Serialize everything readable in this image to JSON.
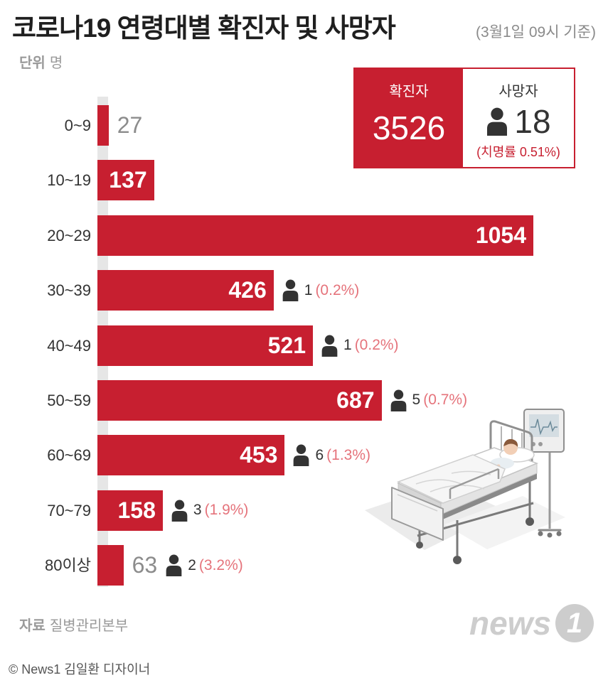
{
  "chart_data": {
    "type": "bar",
    "orientation": "horizontal",
    "title": "코로나19 연령대별 확진자 및 사망자",
    "subtitle": "(3월1일 09시 기준)",
    "unit": {
      "label": "단위",
      "value": "명"
    },
    "categories": [
      "0~9",
      "10~19",
      "20~29",
      "30~39",
      "40~49",
      "50~59",
      "60~69",
      "70~79",
      "80이상"
    ],
    "series": [
      {
        "name": "확진자",
        "values": [
          27,
          137,
          1054,
          426,
          521,
          687,
          453,
          158,
          63
        ]
      },
      {
        "name": "사망자",
        "values": [
          null,
          null,
          null,
          1,
          1,
          5,
          6,
          3,
          2
        ]
      }
    ],
    "death_rates": [
      null,
      null,
      null,
      "(0.2%)",
      "(0.2%)",
      "(0.7%)",
      "(1.3%)",
      "(1.9%)",
      "(3.2%)"
    ],
    "xlim": [
      0,
      1054
    ],
    "grid": false,
    "legend": "none",
    "colors": {
      "bar": "#c71f30",
      "value_inside": "#ffffff",
      "value_outside": "#8c8c8c",
      "deaths": "#333333",
      "rate": "#e5737b"
    }
  },
  "summary": {
    "confirmed_label": "확진자",
    "confirmed_value": "3526",
    "deaths_label": "사망자",
    "deaths_value": "18",
    "fatality_rate": "(치명률 0.51%)"
  },
  "icons": {
    "death": "person-icon",
    "illustration": "hospital-bed-icon"
  },
  "source": {
    "label": "자료",
    "value": "질병관리본부"
  },
  "logo": {
    "text": "news",
    "mark": "1"
  },
  "credit": "© News1 김일환 디자이너"
}
